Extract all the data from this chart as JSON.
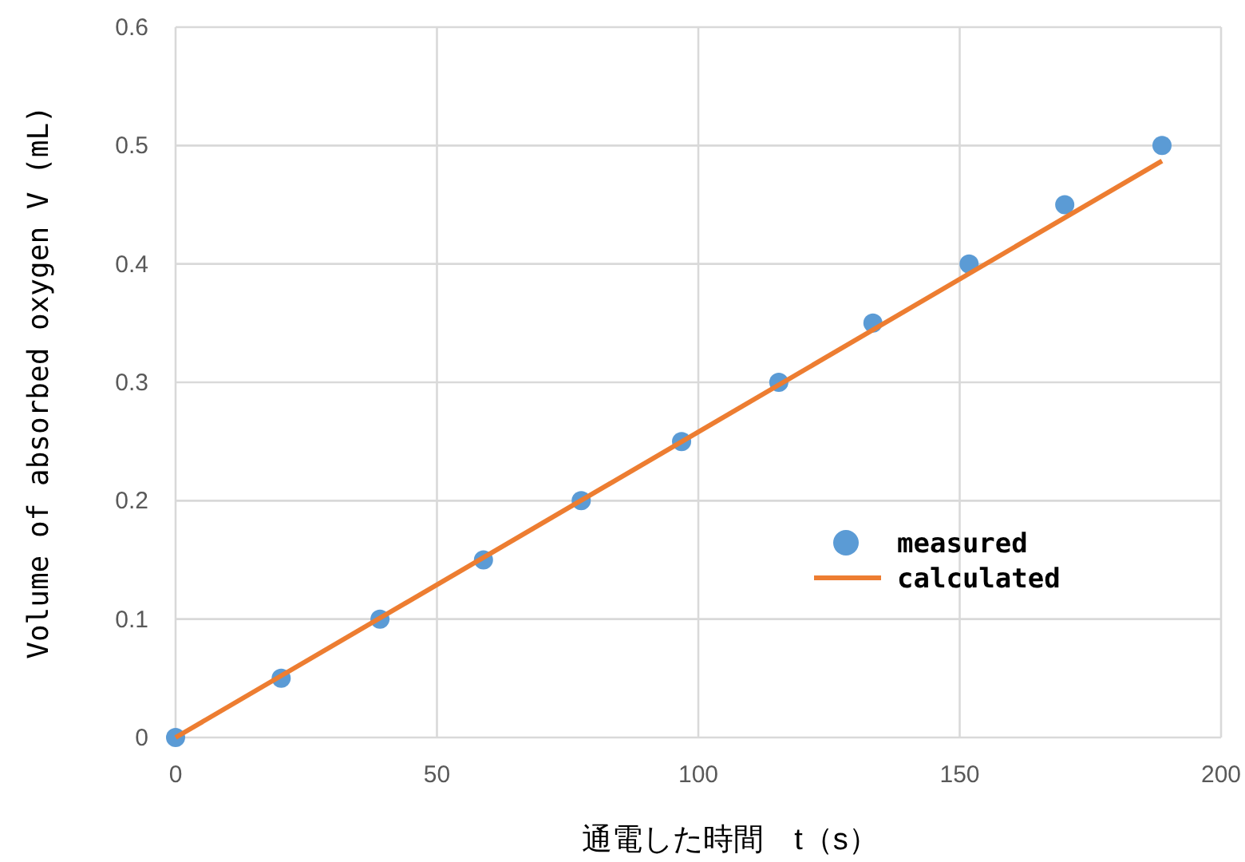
{
  "chart_data": {
    "type": "scatter",
    "xlabel": "通電した時間　t（s）",
    "ylabel": "Volume of absorbed oxygen V (mL)",
    "xlim": [
      0,
      200
    ],
    "ylim": [
      0,
      0.6
    ],
    "xticks": [
      0,
      50,
      100,
      150,
      200
    ],
    "yticks": [
      0,
      0.1,
      0.2,
      0.3,
      0.4,
      0.5,
      0.6
    ],
    "grid": true,
    "legend": "right",
    "series": [
      {
        "name": "measured",
        "marker": "circle",
        "color": "#5b9bd5",
        "x": [
          0,
          20.2,
          39.1,
          58.9,
          77.6,
          96.8,
          115.4,
          133.4,
          151.8,
          170.1,
          188.7
        ],
        "values": [
          0,
          0.05,
          0.1,
          0.15,
          0.2,
          0.25,
          0.3,
          0.35,
          0.4,
          0.45,
          0.5
        ]
      },
      {
        "name": "calculated",
        "type": "line",
        "marker": "none",
        "color": "#ed7d31",
        "x": [
          0,
          188.7
        ],
        "values": [
          0,
          0.487
        ]
      }
    ]
  }
}
